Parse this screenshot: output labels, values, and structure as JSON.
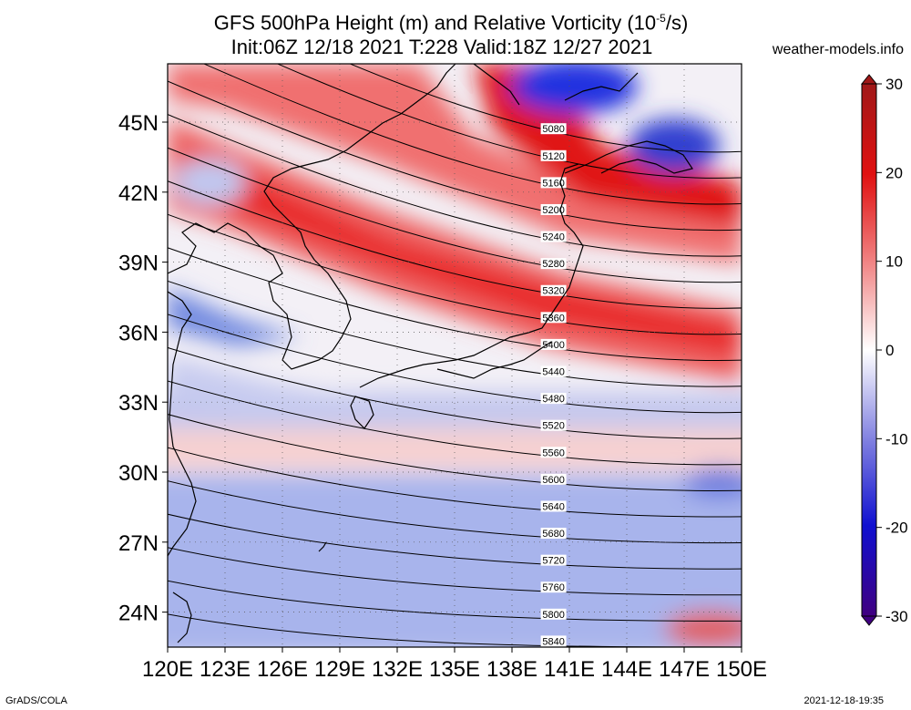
{
  "title": {
    "line1": "GFS 500hPa Height (m) and Relative Vorticity (10",
    "line1_sup": "-5",
    "line1_end": "/s)",
    "line2": "Init:06Z 12/18 2021 T:228 Valid:18Z 12/27 2021"
  },
  "site": "weather-models.info",
  "footer": {
    "left": "GrADS/COLA",
    "right": "2021-12-18-19:35"
  },
  "map": {
    "lon_range": [
      120,
      150
    ],
    "lat_range": [
      22.5,
      47.5
    ],
    "lon_ticks": [
      "120E",
      "123E",
      "126E",
      "129E",
      "132E",
      "135E",
      "138E",
      "141E",
      "144E",
      "147E",
      "150E"
    ],
    "lat_ticks": [
      "24N",
      "27N",
      "30N",
      "33N",
      "36N",
      "39N",
      "42N",
      "45N"
    ],
    "lat_tick_values": [
      24,
      27,
      30,
      33,
      36,
      39,
      42,
      45
    ]
  },
  "colorbar": {
    "labels": [
      "30",
      "20",
      "10",
      "0",
      "-10",
      "-20",
      "-30"
    ],
    "values": [
      30,
      20,
      10,
      0,
      -10,
      -20,
      -30
    ],
    "colors": {
      "max": "#a01818",
      "pos_high": "#e01010",
      "pos_mid": "#f08080",
      "zero": "#ffffff",
      "neg_mid": "#8080e0",
      "neg_high": "#1010d0",
      "min": "#400080"
    }
  },
  "contours": [
    {
      "label": "5080"
    },
    {
      "label": "5120"
    },
    {
      "label": "5160"
    },
    {
      "label": "5200"
    },
    {
      "label": "5240"
    },
    {
      "label": "5280"
    },
    {
      "label": "5320"
    },
    {
      "label": "5360"
    },
    {
      "label": "5400"
    },
    {
      "label": "5440"
    },
    {
      "label": "5480"
    },
    {
      "label": "5520"
    },
    {
      "label": "5560"
    },
    {
      "label": "5600"
    },
    {
      "label": "5640"
    },
    {
      "label": "5680"
    },
    {
      "label": "5720"
    },
    {
      "label": "5760"
    },
    {
      "label": "5800"
    },
    {
      "label": "5840"
    }
  ]
}
